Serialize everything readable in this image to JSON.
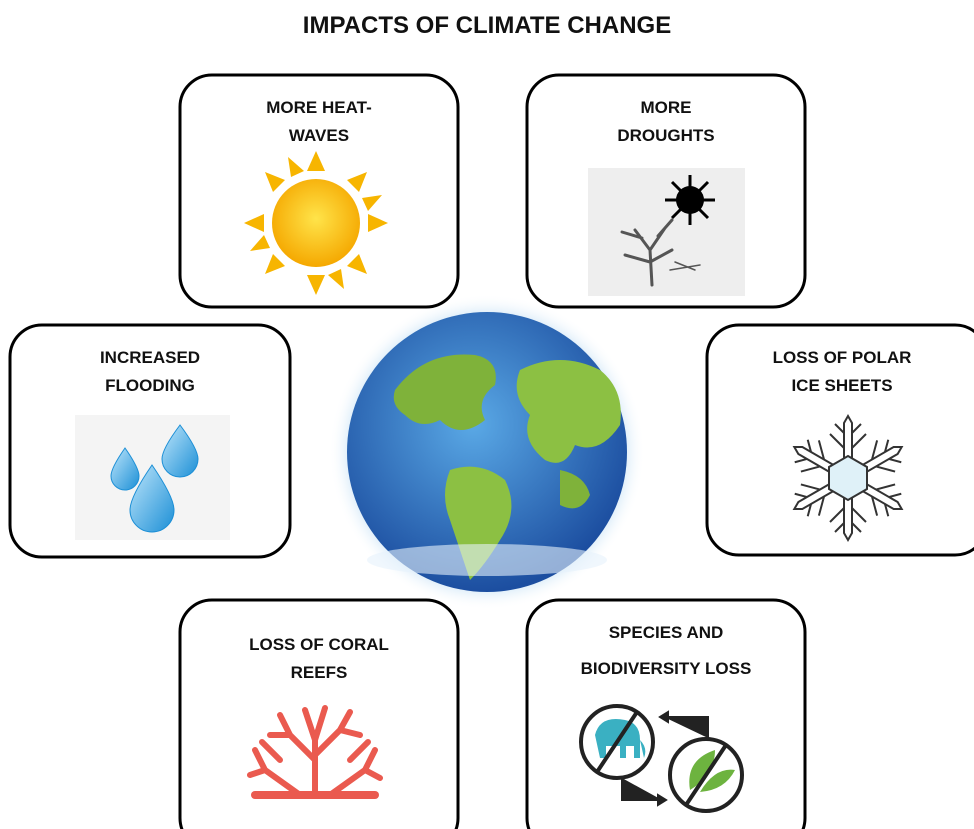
{
  "title": "IMPACTS OF CLIMATE CHANGE",
  "boxes": [
    {
      "label": [
        "MORE HEAT-",
        "WAVES"
      ]
    },
    {
      "label": [
        "MORE",
        "DROUGHTS"
      ]
    },
    {
      "label": [
        "INCREASED",
        "FLOODING"
      ]
    },
    {
      "label": [
        "LOSS OF POLAR",
        "ICE SHEETS"
      ]
    },
    {
      "label": [
        "LOSS OF CORAL",
        "REEFS"
      ]
    },
    {
      "label": [
        "SPECIES AND",
        "BIODIVERSITY LOSS"
      ]
    }
  ]
}
